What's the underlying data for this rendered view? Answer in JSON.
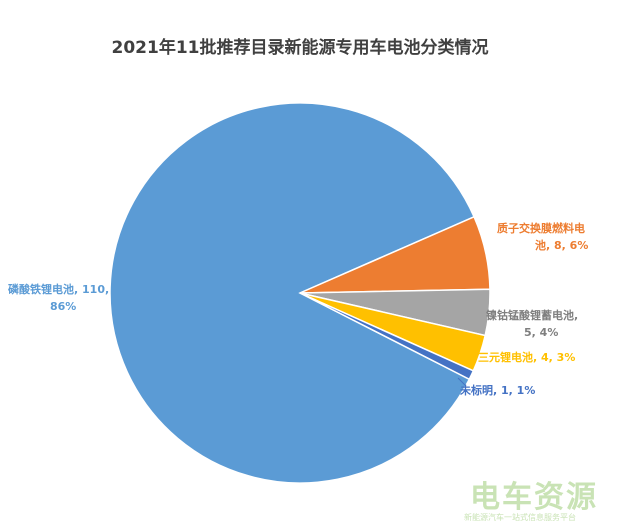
{
  "chart_data": {
    "type": "pie",
    "title": "2021年11批推荐目录新能源专用车电池分类情况",
    "slices": [
      {
        "name": "磷酸铁锂电池",
        "value": 110,
        "percent": "86%",
        "color": "#5B9BD5",
        "label_line1": "磷酸铁锂电池, 110,",
        "label_line2": "86%"
      },
      {
        "name": "质子交换膜燃料电池",
        "value": 8,
        "percent": "6%",
        "color": "#ED7D31",
        "label_line1": "质子交换膜燃料电",
        "label_line2": "池, 8, 6%"
      },
      {
        "name": "镍钴锰酸锂蓄电池",
        "value": 5,
        "percent": "4%",
        "color": "#A5A5A5",
        "label_line1": "镍钴锰酸锂蓄电池,",
        "label_line2": "5, 4%"
      },
      {
        "name": "三元锂电池",
        "value": 4,
        "percent": "3%",
        "color": "#FFC000",
        "label_line1": "三元锂电池, 4, 3%",
        "label_line2": ""
      },
      {
        "name": "未标明",
        "value": 1,
        "percent": "1%",
        "color": "#4472C4",
        "label_line1": "未标明, 1, 1%",
        "label_line2": ""
      }
    ],
    "legend": "none"
  },
  "watermark": {
    "main": "电车资源",
    "sub": "新能源汽车一站式信息服务平台"
  }
}
